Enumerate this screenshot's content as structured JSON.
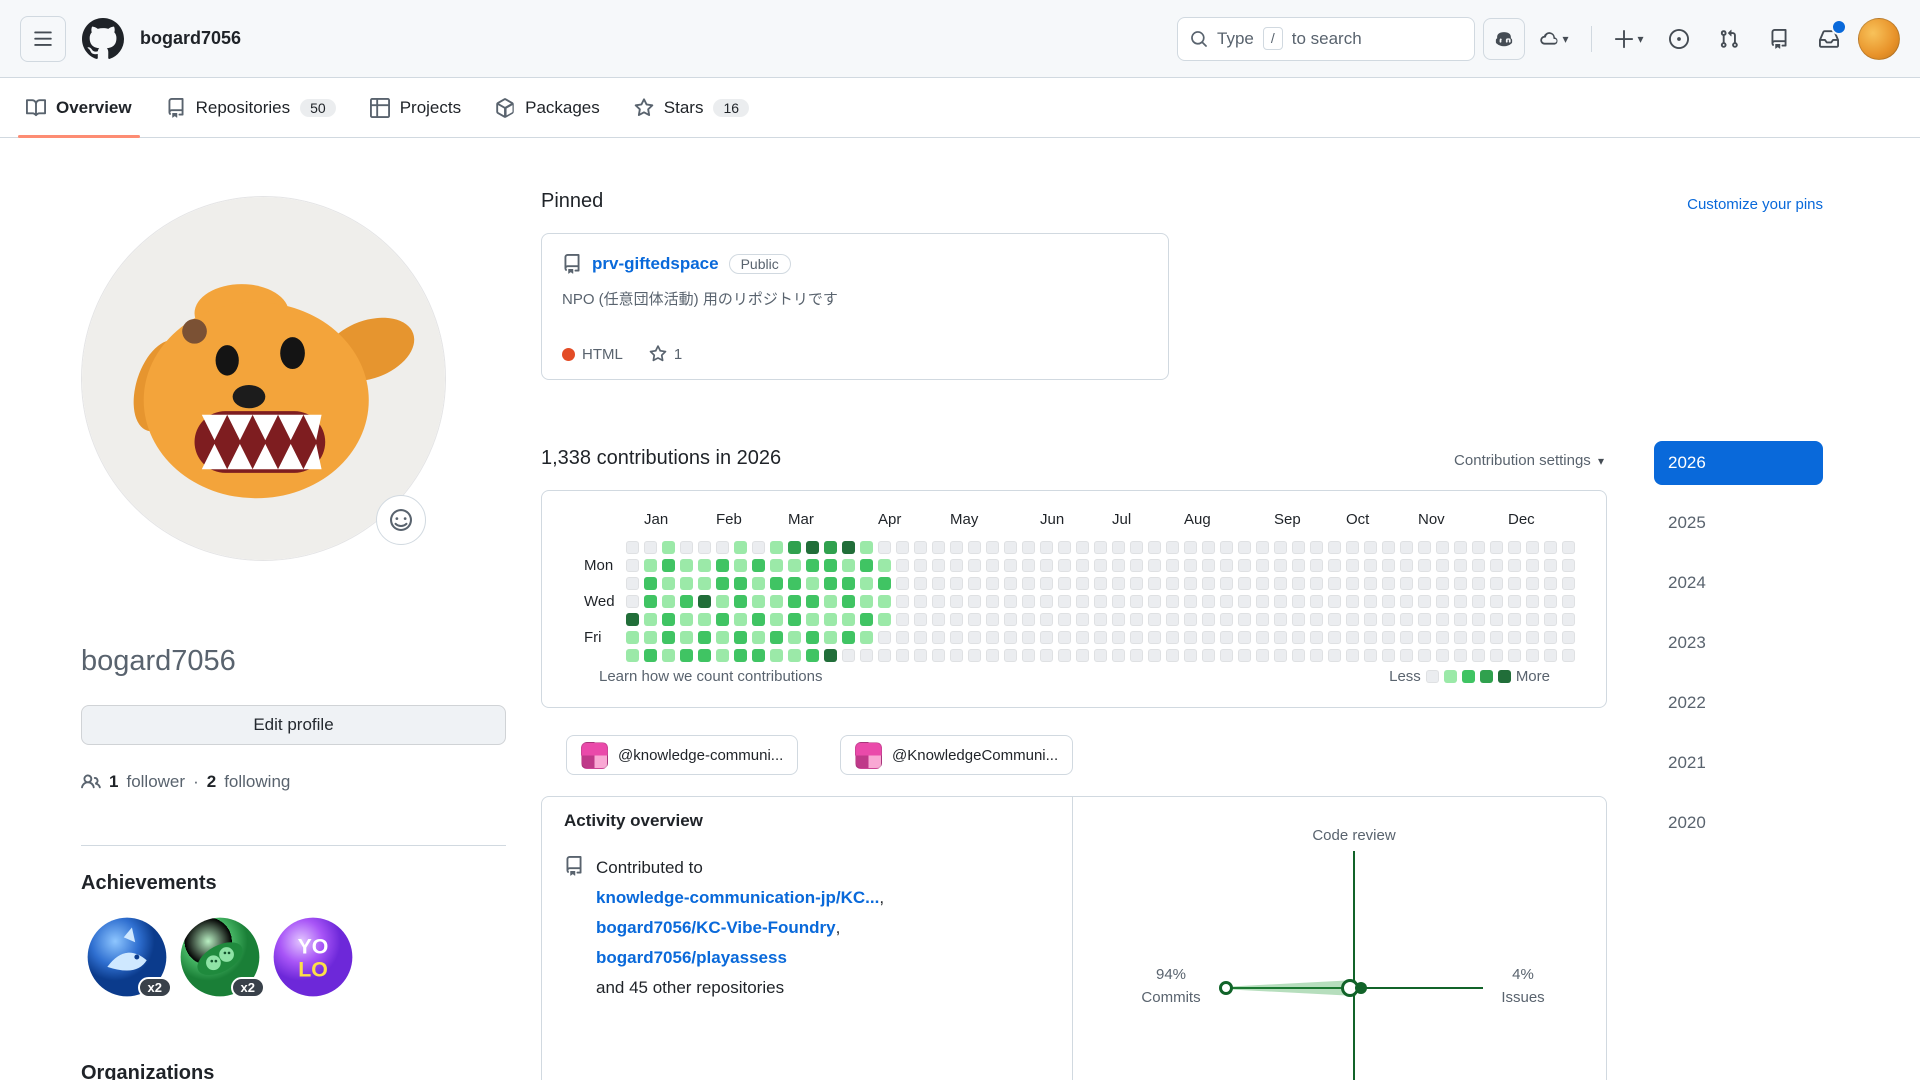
{
  "header": {
    "title": "bogard7056",
    "search": {
      "prefix": "Type",
      "key": "/",
      "suffix": "to search"
    }
  },
  "tabs": [
    {
      "label": "Overview",
      "count": ""
    },
    {
      "label": "Repositories",
      "count": "50"
    },
    {
      "label": "Projects",
      "count": ""
    },
    {
      "label": "Packages",
      "count": ""
    },
    {
      "label": "Stars",
      "count": "16"
    }
  ],
  "profile": {
    "username": "bogard7056",
    "edit_button": "Edit profile",
    "followers_count": "1",
    "followers_label": "follower",
    "separator": "·",
    "following_count": "2",
    "following_label": "following",
    "achievements_title": "Achievements",
    "achievements": [
      {
        "name": "pull-shark",
        "count": "x2"
      },
      {
        "name": "pair-extraordinaire",
        "count": "x2"
      },
      {
        "name": "yolo",
        "count": ""
      }
    ],
    "organizations_title": "Organizations"
  },
  "pinned": {
    "title": "Pinned",
    "customize_link": "Customize your pins",
    "repo": {
      "name": "prv-giftedspace",
      "visibility": "Public",
      "description": "NPO (任意団体活動) 用のリポジトリです",
      "language": "HTML",
      "language_color": "#e34c26",
      "stars": "1"
    }
  },
  "contributions": {
    "title": "1,338 contributions in 2026",
    "settings_label": "Contribution settings",
    "learn_link": "Learn how we count contributions",
    "less_label": "Less",
    "more_label": "More",
    "day_labels": [
      "Mon",
      "Wed",
      "Fri"
    ],
    "months": [
      {
        "label": "Jan",
        "week": 1
      },
      {
        "label": "Feb",
        "week": 5
      },
      {
        "label": "Mar",
        "week": 9
      },
      {
        "label": "Apr",
        "week": 14
      },
      {
        "label": "May",
        "week": 18
      },
      {
        "label": "Jun",
        "week": 23
      },
      {
        "label": "Jul",
        "week": 27
      },
      {
        "label": "Aug",
        "week": 31
      },
      {
        "label": "Sep",
        "week": 36
      },
      {
        "label": "Oct",
        "week": 40
      },
      {
        "label": "Nov",
        "week": 44
      },
      {
        "label": "Dec",
        "week": 49
      }
    ],
    "heatmap": {
      "colors": [
        "#ebedf0",
        "#9be9a8",
        "#40c463",
        "#30a14e",
        "#216e39"
      ],
      "weeks": [
        "0000411",
        "0122112",
        "1211221",
        "0112112",
        "0114122",
        "0221211",
        "1122122",
        "0211212",
        "1121121",
        "3122211",
        "4212122",
        "3221114",
        "4122120",
        "1211210",
        "0121100",
        "0000000",
        "0000000",
        "0000000",
        "0000000",
        "0000000",
        "0000000",
        "0000000",
        "0000000",
        "0000000",
        "0000000",
        "0000000",
        "0000000",
        "0000000",
        "0000000",
        "0000000",
        "0000000",
        "0000000",
        "0000000",
        "0000000",
        "0000000",
        "0000000",
        "0000000",
        "0000000",
        "0000000",
        "0000000",
        "0000000",
        "0000000",
        "0000000",
        "0000000",
        "0000000",
        "0000000",
        "0000000",
        "0000000",
        "0000000",
        "0000000",
        "0000000",
        "0000000",
        "0000000"
      ]
    }
  },
  "org_filters": [
    {
      "label": "@knowledge-communi..."
    },
    {
      "label": "@KnowledgeCommuni..."
    }
  ],
  "activity": {
    "title": "Activity overview",
    "contributed_to": "Contributed to",
    "repos": [
      {
        "name": "knowledge-communication-jp/KC...",
        "sep": ","
      },
      {
        "name": "bogard7056/KC-Vibe-Foundry",
        "sep": ","
      },
      {
        "name": "bogard7056/playassess",
        "sep": ""
      }
    ],
    "more": "and 45 other repositories",
    "chart": {
      "top_label": "Code review",
      "commits_pct": "94%",
      "commits_label": "Commits",
      "issues_pct": "4%",
      "issues_label": "Issues"
    }
  },
  "years": [
    "2026",
    "2025",
    "2024",
    "2023",
    "2022",
    "2021",
    "2020"
  ]
}
